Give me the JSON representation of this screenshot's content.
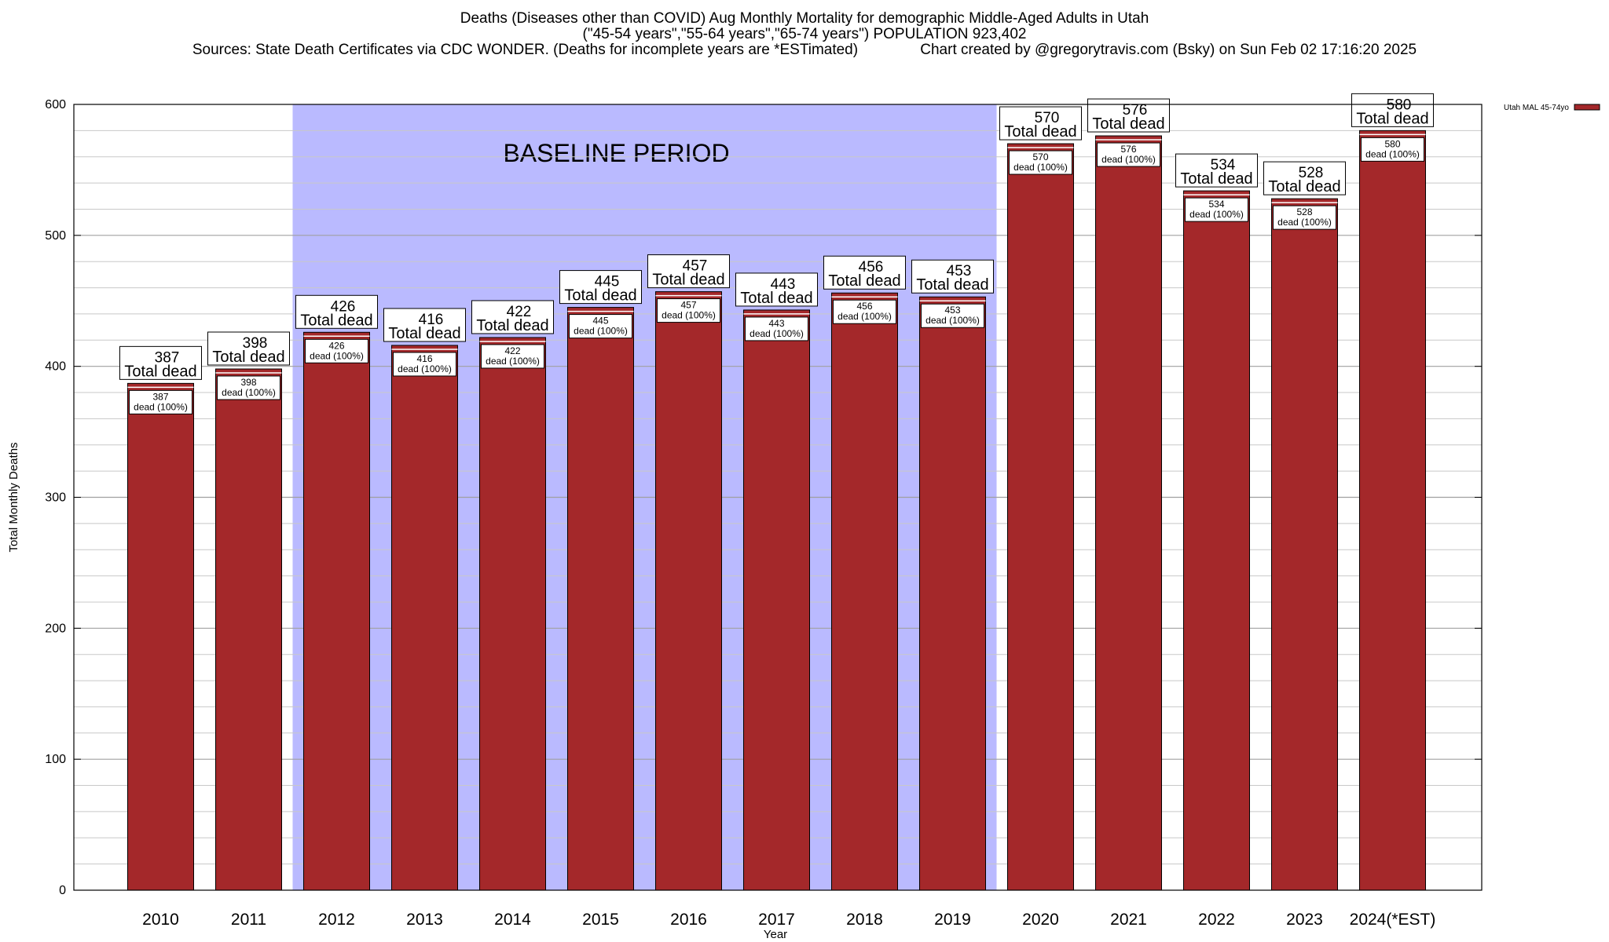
{
  "header": {
    "title_line1": "Deaths (Diseases other than COVID) Aug Monthly Mortality for demographic Middle-Aged Adults in Utah",
    "title_line2": "(\"45-54 years\",\"55-64 years\",\"65-74 years\") POPULATION 923,402",
    "title_line3_left": "Sources: State Death Certificates via CDC WONDER. (Deaths for incomplete years are *ESTimated)",
    "title_line3_right": "Chart created by @gregorytravis.com (Bsky) on Sun Feb 02 17:16:20 2025"
  },
  "chart_data": {
    "type": "bar",
    "xlabel": "Year",
    "ylabel": "Total Monthly Deaths",
    "ylim": [
      0,
      600
    ],
    "yticks": [
      0,
      100,
      200,
      300,
      400,
      500,
      600
    ],
    "categories": [
      "2010",
      "2011",
      "2012",
      "2013",
      "2014",
      "2015",
      "2016",
      "2017",
      "2018",
      "2019",
      "2020",
      "2021",
      "2022",
      "2023",
      "2024(*EST)"
    ],
    "series": [
      {
        "name": "Utah MAL 45-74yo",
        "values": [
          387,
          398,
          426,
          416,
          422,
          445,
          457,
          443,
          456,
          453,
          570,
          576,
          534,
          528,
          580
        ],
        "color": "#a4282a"
      }
    ],
    "top_label_suffix": "Total dead",
    "inner_label_suffix": "dead (100%)",
    "baseline_region": {
      "label": "BASELINE PERIOD",
      "from_category": "2012",
      "to_category": "2019",
      "color": "#babaff"
    },
    "grid": true,
    "legend_position": "top-right"
  }
}
